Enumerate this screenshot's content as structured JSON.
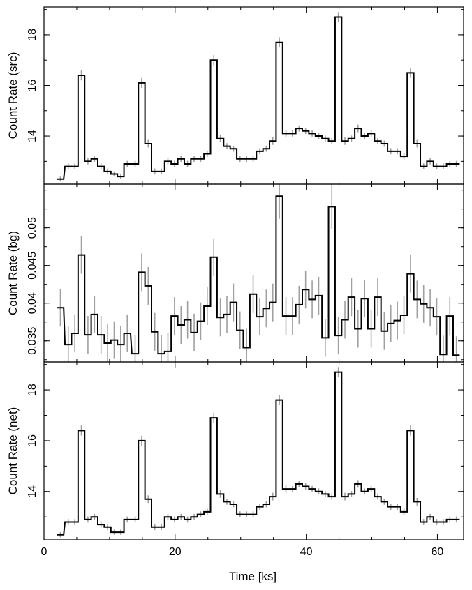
{
  "chart_data": {
    "type": "line",
    "layout": "three vertically stacked panels sharing the time axis",
    "xlabel": "Time [ks]",
    "xlim": [
      0,
      64
    ],
    "xticks": [
      0,
      20,
      40,
      60
    ],
    "x": [
      2,
      3.2,
      4.2,
      5.2,
      6.2,
      7.2,
      8.2,
      9.2,
      10.2,
      11.2,
      12.2,
      13.4,
      14.4,
      15.4,
      16.4,
      17.4,
      18.4,
      19.4,
      20.4,
      21.4,
      22.4,
      23.4,
      24.4,
      25.4,
      26.4,
      27.4,
      28.4,
      29.4,
      30.4,
      31.4,
      32.4,
      33.4,
      34.4,
      35.4,
      36.4,
      37.4,
      38.4,
      39.4,
      40.4,
      41.4,
      42.4,
      43.4,
      44.4,
      45.4,
      46.4,
      47.4,
      48.4,
      49.4,
      50.4,
      51.4,
      52.4,
      53.4,
      54.4,
      55.4,
      56.4,
      57.4,
      58.4,
      59.4,
      60.4,
      61.4,
      62.4
    ],
    "bin_width": 1,
    "panels": [
      {
        "ylabel": "Count Rate (src)",
        "ylim": [
          12.1,
          19.1
        ],
        "yticks": [
          14,
          16,
          18
        ],
        "ytick_labels": [
          "14",
          "16",
          "18"
        ],
        "values": [
          12.3,
          12.8,
          12.8,
          16.4,
          13.0,
          13.1,
          12.8,
          12.6,
          12.5,
          12.4,
          12.9,
          12.9,
          16.1,
          13.7,
          12.6,
          12.6,
          13.0,
          12.9,
          13.1,
          12.9,
          13.1,
          13.1,
          13.3,
          17.0,
          13.9,
          13.6,
          13.5,
          13.1,
          13.1,
          13.1,
          13.4,
          13.5,
          13.8,
          17.7,
          14.1,
          14.1,
          14.3,
          14.2,
          14.1,
          14.0,
          13.9,
          13.8,
          18.7,
          13.8,
          13.9,
          14.3,
          14.0,
          14.1,
          13.8,
          13.7,
          13.4,
          13.4,
          13.2,
          16.5,
          13.7,
          12.8,
          13.0,
          12.8,
          12.8,
          12.9,
          12.9
        ],
        "errors": [
          0.1,
          0.12,
          0.12,
          0.2,
          0.12,
          0.12,
          0.12,
          0.12,
          0.1,
          0.1,
          0.12,
          0.12,
          0.2,
          0.15,
          0.12,
          0.12,
          0.12,
          0.12,
          0.12,
          0.12,
          0.12,
          0.12,
          0.12,
          0.2,
          0.15,
          0.12,
          0.12,
          0.12,
          0.12,
          0.12,
          0.12,
          0.12,
          0.15,
          0.2,
          0.15,
          0.12,
          0.12,
          0.12,
          0.12,
          0.12,
          0.12,
          0.12,
          0.2,
          0.15,
          0.12,
          0.15,
          0.12,
          0.12,
          0.12,
          0.12,
          0.12,
          0.12,
          0.12,
          0.2,
          0.15,
          0.12,
          0.12,
          0.12,
          0.12,
          0.12,
          0.12
        ]
      },
      {
        "ylabel": "Count Rate (bg)",
        "ylim": [
          0.0322,
          0.0558
        ],
        "yticks": [
          0.035,
          0.04,
          0.045,
          0.05
        ],
        "ytick_labels": [
          "0.035",
          "0.04",
          "0.045",
          "0.05"
        ],
        "values": [
          0.0394,
          0.0345,
          0.036,
          0.0464,
          0.0358,
          0.0385,
          0.0358,
          0.0347,
          0.0351,
          0.0345,
          0.036,
          0.0333,
          0.0441,
          0.0423,
          0.0362,
          0.0333,
          0.0336,
          0.0383,
          0.0371,
          0.0378,
          0.0361,
          0.0376,
          0.0396,
          0.0461,
          0.0381,
          0.0385,
          0.0401,
          0.0364,
          0.0341,
          0.0412,
          0.0382,
          0.0393,
          0.0401,
          0.0542,
          0.0383,
          0.0383,
          0.0398,
          0.0418,
          0.0405,
          0.041,
          0.0354,
          0.0528,
          0.0357,
          0.0378,
          0.0408,
          0.0366,
          0.0406,
          0.0366,
          0.0408,
          0.0363,
          0.0373,
          0.0377,
          0.0384,
          0.0439,
          0.0405,
          0.0399,
          0.0394,
          0.0382,
          0.0332,
          0.0383,
          0.0331
        ],
        "errors": [
          0.0025,
          0.0025,
          0.0025,
          0.0025,
          0.0025,
          0.0025,
          0.0025,
          0.0025,
          0.0025,
          0.0025,
          0.0025,
          0.0025,
          0.0025,
          0.0025,
          0.0025,
          0.0025,
          0.0025,
          0.0025,
          0.0025,
          0.0025,
          0.0025,
          0.0025,
          0.0025,
          0.0025,
          0.0025,
          0.0025,
          0.0025,
          0.0025,
          0.0025,
          0.0025,
          0.0025,
          0.0025,
          0.0025,
          0.003,
          0.0025,
          0.0025,
          0.0025,
          0.0025,
          0.0025,
          0.0025,
          0.0025,
          0.003,
          0.0025,
          0.0025,
          0.0025,
          0.0025,
          0.0025,
          0.0025,
          0.0025,
          0.0025,
          0.0025,
          0.0025,
          0.0025,
          0.0025,
          0.0025,
          0.0025,
          0.0025,
          0.0025,
          0.0025,
          0.0025,
          0.0025
        ]
      },
      {
        "ylabel": "Count Rate (net)",
        "ylim": [
          12.1,
          19.1
        ],
        "yticks": [
          14,
          16,
          18
        ],
        "ytick_labels": [
          "14",
          "16",
          "18"
        ],
        "values": [
          12.3,
          12.8,
          12.8,
          16.4,
          12.9,
          13.0,
          12.7,
          12.6,
          12.4,
          12.4,
          12.9,
          12.9,
          16.0,
          13.7,
          12.6,
          12.6,
          13.0,
          12.9,
          13.0,
          12.9,
          13.0,
          13.1,
          13.2,
          16.9,
          13.9,
          13.6,
          13.5,
          13.1,
          13.1,
          13.1,
          13.4,
          13.5,
          13.8,
          17.6,
          14.1,
          14.1,
          14.3,
          14.2,
          14.1,
          14.0,
          13.9,
          13.8,
          18.7,
          13.8,
          13.9,
          14.3,
          14.0,
          14.1,
          13.8,
          13.6,
          13.4,
          13.4,
          13.2,
          16.4,
          13.6,
          12.8,
          13.0,
          12.8,
          12.8,
          12.9,
          12.9
        ],
        "errors": [
          0.1,
          0.12,
          0.12,
          0.2,
          0.12,
          0.12,
          0.12,
          0.12,
          0.1,
          0.1,
          0.12,
          0.12,
          0.2,
          0.15,
          0.12,
          0.12,
          0.12,
          0.12,
          0.12,
          0.12,
          0.12,
          0.12,
          0.12,
          0.2,
          0.15,
          0.12,
          0.12,
          0.12,
          0.12,
          0.12,
          0.12,
          0.12,
          0.15,
          0.2,
          0.15,
          0.12,
          0.12,
          0.12,
          0.12,
          0.12,
          0.12,
          0.12,
          0.2,
          0.15,
          0.12,
          0.15,
          0.12,
          0.12,
          0.12,
          0.12,
          0.12,
          0.12,
          0.12,
          0.2,
          0.15,
          0.12,
          0.12,
          0.12,
          0.12,
          0.12,
          0.12
        ]
      }
    ],
    "colors": {
      "step_line": "#000000",
      "error_bar": "#a0a0a0",
      "frame": "#000000"
    },
    "grid": false,
    "legend": "none"
  }
}
